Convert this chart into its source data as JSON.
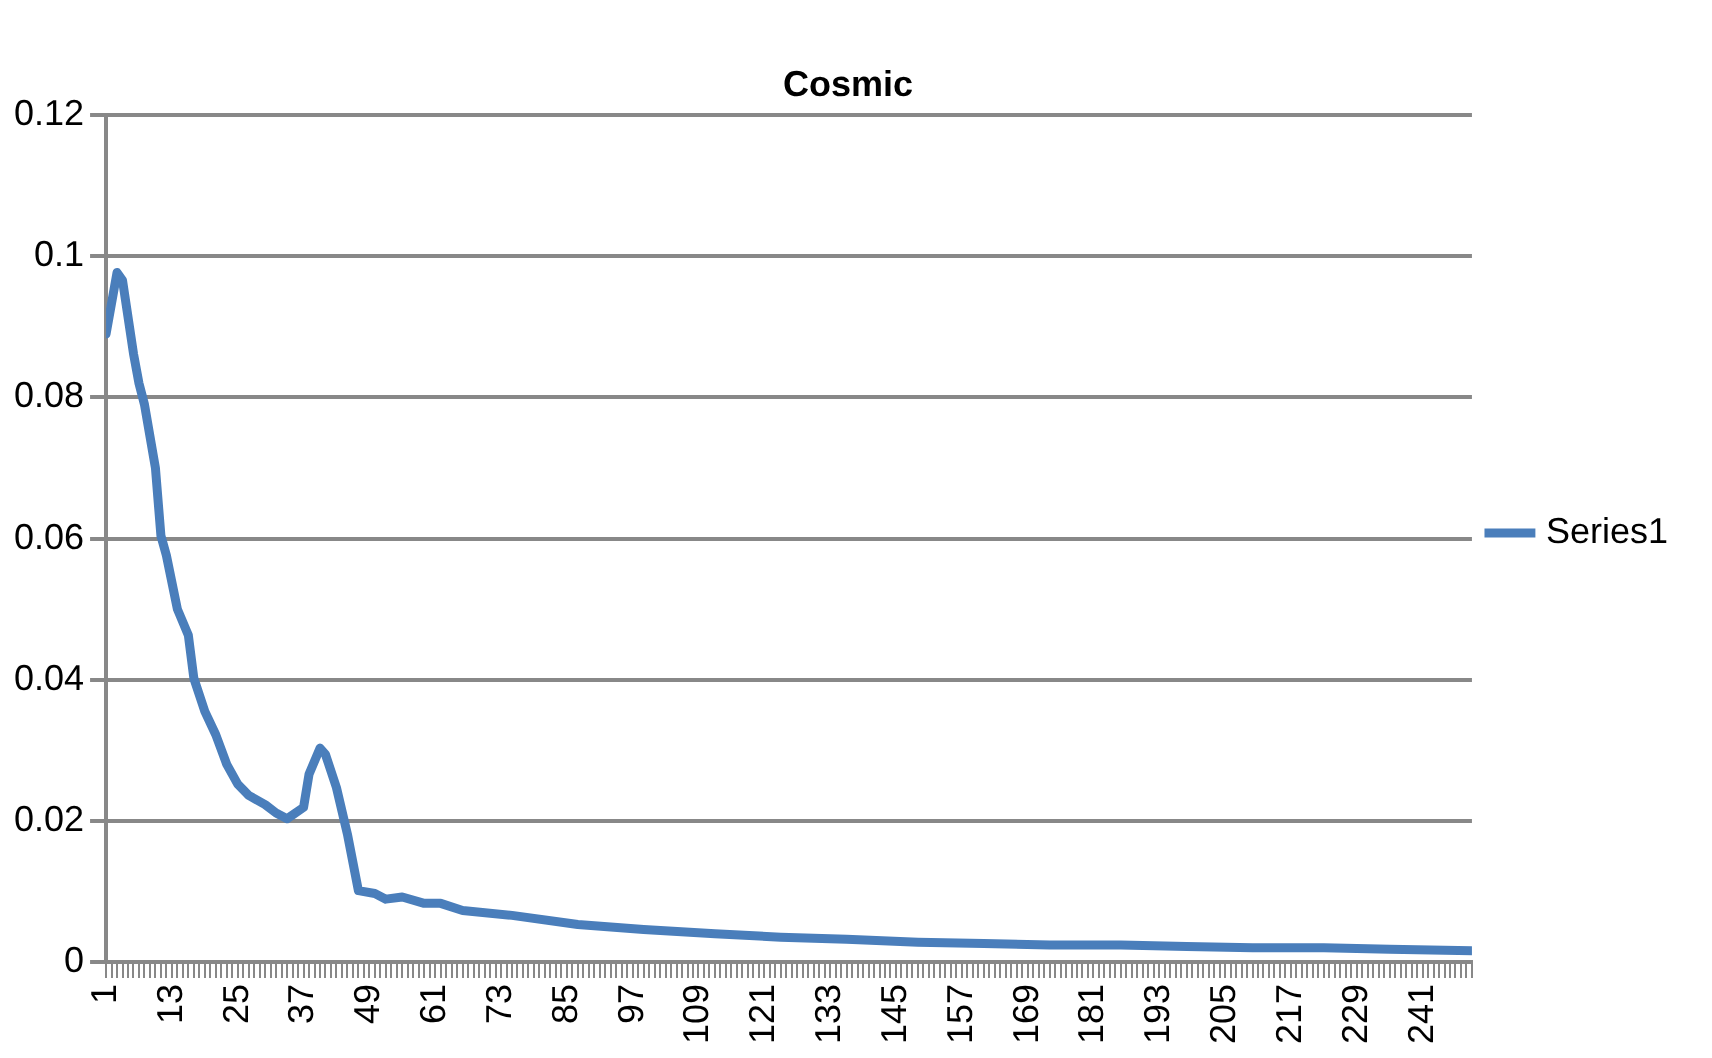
{
  "chart_data": {
    "type": "line",
    "title": "Cosmic",
    "legend": "right",
    "grid": "y",
    "marker": "none",
    "line_style": "solid",
    "xlim": [
      1,
      250
    ],
    "ylim": [
      0,
      0.12
    ],
    "yticks": [
      0,
      0.02,
      0.04,
      0.06,
      0.08,
      0.1,
      0.12
    ],
    "xticks": [
      1,
      {
        "value": 2,
        "label": null
      },
      {
        "value": 3,
        "label": null
      },
      {
        "value": 4,
        "label": null
      },
      {
        "value": 5,
        "label": null
      },
      {
        "value": 6,
        "label": null
      },
      {
        "value": 7,
        "label": null
      },
      {
        "value": 8,
        "label": null
      },
      {
        "value": 9,
        "label": null
      },
      {
        "value": 10,
        "label": null
      },
      {
        "value": 11,
        "label": null
      },
      {
        "value": 12,
        "label": null
      },
      13,
      {
        "value": 14,
        "label": null
      },
      {
        "value": 15,
        "label": null
      },
      {
        "value": 16,
        "label": null
      },
      {
        "value": 17,
        "label": null
      },
      {
        "value": 18,
        "label": null
      },
      {
        "value": 19,
        "label": null
      },
      {
        "value": 20,
        "label": null
      },
      {
        "value": 21,
        "label": null
      },
      {
        "value": 22,
        "label": null
      },
      {
        "value": 23,
        "label": null
      },
      {
        "value": 24,
        "label": null
      },
      25,
      {
        "value": 26,
        "label": null
      },
      {
        "value": 27,
        "label": null
      },
      {
        "value": 28,
        "label": null
      },
      {
        "value": 29,
        "label": null
      },
      {
        "value": 30,
        "label": null
      },
      {
        "value": 31,
        "label": null
      },
      {
        "value": 32,
        "label": null
      },
      {
        "value": 33,
        "label": null
      },
      {
        "value": 34,
        "label": null
      },
      {
        "value": 35,
        "label": null
      },
      {
        "value": 36,
        "label": null
      },
      37,
      {
        "value": 38,
        "label": null
      },
      {
        "value": 39,
        "label": null
      },
      {
        "value": 40,
        "label": null
      },
      {
        "value": 41,
        "label": null
      },
      {
        "value": 42,
        "label": null
      },
      {
        "value": 43,
        "label": null
      },
      {
        "value": 44,
        "label": null
      },
      {
        "value": 45,
        "label": null
      },
      {
        "value": 46,
        "label": null
      },
      {
        "value": 47,
        "label": null
      },
      {
        "value": 48,
        "label": null
      },
      49,
      {
        "value": 50,
        "label": null
      },
      {
        "value": 51,
        "label": null
      },
      {
        "value": 52,
        "label": null
      },
      {
        "value": 53,
        "label": null
      },
      {
        "value": 54,
        "label": null
      },
      {
        "value": 55,
        "label": null
      },
      {
        "value": 56,
        "label": null
      },
      {
        "value": 57,
        "label": null
      },
      {
        "value": 58,
        "label": null
      },
      {
        "value": 59,
        "label": null
      },
      {
        "value": 60,
        "label": null
      },
      61,
      {
        "value": 62,
        "label": null
      },
      {
        "value": 63,
        "label": null
      },
      {
        "value": 64,
        "label": null
      },
      {
        "value": 65,
        "label": null
      },
      {
        "value": 66,
        "label": null
      },
      {
        "value": 67,
        "label": null
      },
      {
        "value": 68,
        "label": null
      },
      {
        "value": 69,
        "label": null
      },
      {
        "value": 70,
        "label": null
      },
      {
        "value": 71,
        "label": null
      },
      {
        "value": 72,
        "label": null
      },
      73,
      {
        "value": 74,
        "label": null
      },
      {
        "value": 75,
        "label": null
      },
      {
        "value": 76,
        "label": null
      },
      {
        "value": 77,
        "label": null
      },
      {
        "value": 78,
        "label": null
      },
      {
        "value": 79,
        "label": null
      },
      {
        "value": 80,
        "label": null
      },
      {
        "value": 81,
        "label": null
      },
      {
        "value": 82,
        "label": null
      },
      {
        "value": 83,
        "label": null
      },
      {
        "value": 84,
        "label": null
      },
      85,
      {
        "value": 86,
        "label": null
      },
      {
        "value": 87,
        "label": null
      },
      {
        "value": 88,
        "label": null
      },
      {
        "value": 89,
        "label": null
      },
      {
        "value": 90,
        "label": null
      },
      {
        "value": 91,
        "label": null
      },
      {
        "value": 92,
        "label": null
      },
      {
        "value": 93,
        "label": null
      },
      {
        "value": 94,
        "label": null
      },
      {
        "value": 95,
        "label": null
      },
      {
        "value": 96,
        "label": null
      },
      97,
      {
        "value": 98,
        "label": null
      },
      {
        "value": 99,
        "label": null
      },
      {
        "value": 100,
        "label": null
      },
      {
        "value": 101,
        "label": null
      },
      {
        "value": 102,
        "label": null
      },
      {
        "value": 103,
        "label": null
      },
      {
        "value": 104,
        "label": null
      },
      {
        "value": 105,
        "label": null
      },
      {
        "value": 106,
        "label": null
      },
      {
        "value": 107,
        "label": null
      },
      {
        "value": 108,
        "label": null
      },
      109,
      {
        "value": 110,
        "label": null
      },
      {
        "value": 111,
        "label": null
      },
      {
        "value": 112,
        "label": null
      },
      {
        "value": 113,
        "label": null
      },
      {
        "value": 114,
        "label": null
      },
      {
        "value": 115,
        "label": null
      },
      {
        "value": 116,
        "label": null
      },
      {
        "value": 117,
        "label": null
      },
      {
        "value": 118,
        "label": null
      },
      {
        "value": 119,
        "label": null
      },
      {
        "value": 120,
        "label": null
      },
      121,
      {
        "value": 122,
        "label": null
      },
      {
        "value": 123,
        "label": null
      },
      {
        "value": 124,
        "label": null
      },
      {
        "value": 125,
        "label": null
      },
      {
        "value": 126,
        "label": null
      },
      {
        "value": 127,
        "label": null
      },
      {
        "value": 128,
        "label": null
      },
      {
        "value": 129,
        "label": null
      },
      {
        "value": 130,
        "label": null
      },
      {
        "value": 131,
        "label": null
      },
      {
        "value": 132,
        "label": null
      },
      133,
      {
        "value": 134,
        "label": null
      },
      {
        "value": 135,
        "label": null
      },
      {
        "value": 136,
        "label": null
      },
      {
        "value": 137,
        "label": null
      },
      {
        "value": 138,
        "label": null
      },
      {
        "value": 139,
        "label": null
      },
      {
        "value": 140,
        "label": null
      },
      {
        "value": 141,
        "label": null
      },
      {
        "value": 142,
        "label": null
      },
      {
        "value": 143,
        "label": null
      },
      {
        "value": 144,
        "label": null
      },
      145,
      {
        "value": 146,
        "label": null
      },
      {
        "value": 147,
        "label": null
      },
      {
        "value": 148,
        "label": null
      },
      {
        "value": 149,
        "label": null
      },
      {
        "value": 150,
        "label": null
      },
      {
        "value": 151,
        "label": null
      },
      {
        "value": 152,
        "label": null
      },
      {
        "value": 153,
        "label": null
      },
      {
        "value": 154,
        "label": null
      },
      {
        "value": 155,
        "label": null
      },
      {
        "value": 156,
        "label": null
      },
      157,
      {
        "value": 158,
        "label": null
      },
      {
        "value": 159,
        "label": null
      },
      {
        "value": 160,
        "label": null
      },
      {
        "value": 161,
        "label": null
      },
      {
        "value": 162,
        "label": null
      },
      {
        "value": 163,
        "label": null
      },
      {
        "value": 164,
        "label": null
      },
      {
        "value": 165,
        "label": null
      },
      {
        "value": 166,
        "label": null
      },
      {
        "value": 167,
        "label": null
      },
      {
        "value": 168,
        "label": null
      },
      169,
      {
        "value": 170,
        "label": null
      },
      {
        "value": 171,
        "label": null
      },
      {
        "value": 172,
        "label": null
      },
      {
        "value": 173,
        "label": null
      },
      {
        "value": 174,
        "label": null
      },
      {
        "value": 175,
        "label": null
      },
      {
        "value": 176,
        "label": null
      },
      {
        "value": 177,
        "label": null
      },
      {
        "value": 178,
        "label": null
      },
      {
        "value": 179,
        "label": null
      },
      {
        "value": 180,
        "label": null
      },
      181,
      {
        "value": 182,
        "label": null
      },
      {
        "value": 183,
        "label": null
      },
      {
        "value": 184,
        "label": null
      },
      {
        "value": 185,
        "label": null
      },
      {
        "value": 186,
        "label": null
      },
      {
        "value": 187,
        "label": null
      },
      {
        "value": 188,
        "label": null
      },
      {
        "value": 189,
        "label": null
      },
      {
        "value": 190,
        "label": null
      },
      {
        "value": 191,
        "label": null
      },
      {
        "value": 192,
        "label": null
      },
      193,
      {
        "value": 194,
        "label": null
      },
      {
        "value": 195,
        "label": null
      },
      {
        "value": 196,
        "label": null
      },
      {
        "value": 197,
        "label": null
      },
      {
        "value": 198,
        "label": null
      },
      {
        "value": 199,
        "label": null
      },
      {
        "value": 200,
        "label": null
      },
      {
        "value": 201,
        "label": null
      },
      {
        "value": 202,
        "label": null
      },
      {
        "value": 203,
        "label": null
      },
      {
        "value": 204,
        "label": null
      },
      205,
      {
        "value": 206,
        "label": null
      },
      {
        "value": 207,
        "label": null
      },
      {
        "value": 208,
        "label": null
      },
      {
        "value": 209,
        "label": null
      },
      {
        "value": 210,
        "label": null
      },
      {
        "value": 211,
        "label": null
      },
      {
        "value": 212,
        "label": null
      },
      {
        "value": 213,
        "label": null
      },
      {
        "value": 214,
        "label": null
      },
      {
        "value": 215,
        "label": null
      },
      {
        "value": 216,
        "label": null
      },
      217,
      {
        "value": 218,
        "label": null
      },
      {
        "value": 219,
        "label": null
      },
      {
        "value": 220,
        "label": null
      },
      {
        "value": 221,
        "label": null
      },
      {
        "value": 222,
        "label": null
      },
      {
        "value": 223,
        "label": null
      },
      {
        "value": 224,
        "label": null
      },
      {
        "value": 225,
        "label": null
      },
      {
        "value": 226,
        "label": null
      },
      {
        "value": 227,
        "label": null
      },
      {
        "value": 228,
        "label": null
      },
      229,
      {
        "value": 230,
        "label": null
      },
      {
        "value": 231,
        "label": null
      },
      {
        "value": 232,
        "label": null
      },
      {
        "value": 233,
        "label": null
      },
      {
        "value": 234,
        "label": null
      },
      {
        "value": 235,
        "label": null
      },
      {
        "value": 236,
        "label": null
      },
      {
        "value": 237,
        "label": null
      },
      {
        "value": 238,
        "label": null
      },
      {
        "value": 239,
        "label": null
      },
      {
        "value": 240,
        "label": null
      },
      241,
      {
        "value": 242,
        "label": null
      },
      {
        "value": 243,
        "label": null
      },
      {
        "value": 244,
        "label": null
      },
      {
        "value": 245,
        "label": null
      },
      {
        "value": 246,
        "label": null
      },
      {
        "value": 247,
        "label": null
      },
      {
        "value": 248,
        "label": null
      },
      {
        "value": 249,
        "label": null
      },
      {
        "value": 250,
        "label": null
      }
    ],
    "x": [
      1,
      3,
      4,
      6,
      7,
      8,
      10,
      11,
      12,
      14,
      16,
      17,
      19,
      21,
      23,
      25,
      27,
      30,
      32,
      34,
      37,
      38,
      40,
      41,
      43,
      45,
      47,
      50,
      52,
      55,
      59,
      62,
      66,
      75,
      87,
      99,
      112,
      124,
      136,
      149,
      161,
      173,
      186,
      198,
      210,
      223,
      235,
      250
    ],
    "series": [
      {
        "name": "Series1",
        "color": "#4a7ebb",
        "values": [
          0.089,
          0.0977,
          0.0966,
          0.0862,
          0.082,
          0.079,
          0.07,
          0.0604,
          0.0576,
          0.05,
          0.0463,
          0.0402,
          0.0355,
          0.0322,
          0.028,
          0.0252,
          0.0236,
          0.0223,
          0.0211,
          0.0203,
          0.0219,
          0.0266,
          0.0303,
          0.0294,
          0.0247,
          0.0181,
          0.0101,
          0.0097,
          0.0089,
          0.0092,
          0.0083,
          0.0083,
          0.0073,
          0.0066,
          0.0053,
          0.0046,
          0.004,
          0.0035,
          0.0032,
          0.0028,
          0.0026,
          0.0024,
          0.0024,
          0.0022,
          0.002,
          0.002,
          0.0018,
          0.0016
        ]
      }
    ]
  }
}
